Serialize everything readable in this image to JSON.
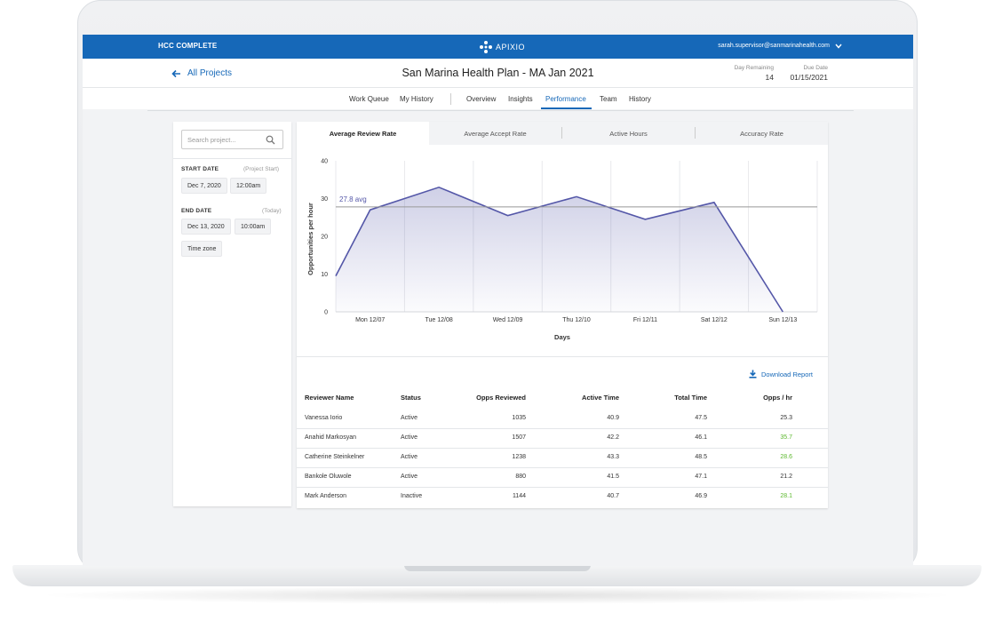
{
  "app": {
    "name": "HCC COMPLETE",
    "logo_text": "APIXIO",
    "user_email": "sarah.supervisor@sanmarinahealth.com"
  },
  "header": {
    "back_label": "All Projects",
    "title": "San Marina Health Plan - MA Jan 2021",
    "day_remaining_label": "Day Remaining",
    "day_remaining_value": "14",
    "due_date_label": "Due Date",
    "due_date_value": "01/15/2021"
  },
  "nav": {
    "items": [
      "Work Queue",
      "My History",
      "Overview",
      "Insights",
      "Performance",
      "Team",
      "History"
    ],
    "active": "Performance"
  },
  "filters": {
    "search_placeholder": "Search project...",
    "start_label": "START DATE",
    "start_hint": "(Project Start)",
    "start_date": "Dec 7, 2020",
    "start_time": "12:00am",
    "end_label": "END DATE",
    "end_hint": "(Today)",
    "end_date": "Dec 13, 2020",
    "end_time": "10:00am",
    "timezone": "Time zone"
  },
  "tabs": [
    "Average Review Rate",
    "Average Accept Rate",
    "Active Hours",
    "Accuracy Rate"
  ],
  "active_tab": "Average Review Rate",
  "chart_data": {
    "type": "area",
    "categories": [
      "Mon 12/07",
      "Tue 12/08",
      "Wed 12/09",
      "Thu 12/10",
      "Fri 12/11",
      "Sat 12/12",
      "Sun 12/13"
    ],
    "x": [
      0,
      0.5,
      1.5,
      2.5,
      3.5,
      4.5,
      5.5,
      6.5
    ],
    "values": [
      9.5,
      27,
      33,
      25.5,
      30.5,
      24.5,
      29,
      0
    ],
    "average": 27.8,
    "average_label": "27.8 avg",
    "xlabel": "Days",
    "ylabel": "Opportunities per hour",
    "ylim": [
      0,
      40
    ],
    "yticks": [
      0,
      10,
      20,
      30,
      40
    ],
    "grid": "vertical",
    "color": "#5457a8"
  },
  "download_label": "Download Report",
  "table": {
    "headers": [
      "Reviewer Name",
      "Status",
      "Opps Reviewed",
      "Active Time",
      "Total Time",
      "Opps / hr"
    ],
    "rows": [
      [
        "Vanessa Iorio",
        "Active",
        "1035",
        "40.9",
        "47.5",
        "25.3"
      ],
      [
        "Anahid Markosyan",
        "Active",
        "1507",
        "42.2",
        "46.1",
        "35.7"
      ],
      [
        "Catherine Steinkelner",
        "Active",
        "1238",
        "43.3",
        "48.5",
        "28.6"
      ],
      [
        "Bankole Oluwole",
        "Active",
        "880",
        "41.5",
        "47.1",
        "21.2"
      ],
      [
        "Mark Anderson",
        "Inactive",
        "1144",
        "40.7",
        "46.9",
        "28.1"
      ]
    ],
    "highlight_color": "#5cb82e",
    "highlighted_rows": [
      1,
      2,
      4
    ]
  }
}
